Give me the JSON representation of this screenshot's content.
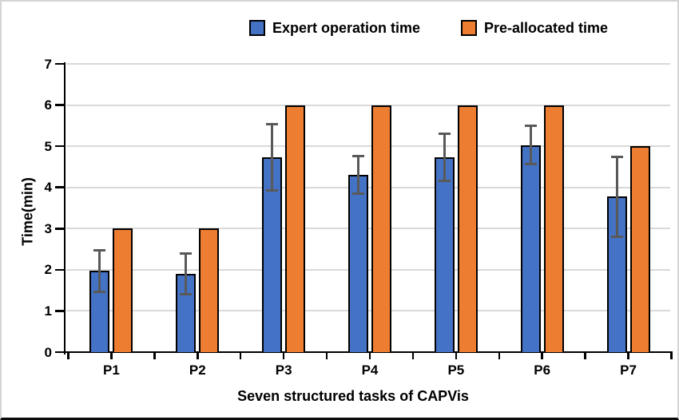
{
  "figure": {
    "background": "#ffffff",
    "border_color": "#d4d4d4",
    "bottom_edge_color": "#0a0a0a"
  },
  "legend": {
    "position": "top",
    "items": [
      {
        "label": "Expert operation time",
        "color": "#4472C4"
      },
      {
        "label": "Pre-allocated time",
        "color": "#ED7D31"
      }
    ]
  },
  "chart_data": {
    "type": "bar",
    "title": "",
    "xlabel": "Seven structured tasks of CAPVis",
    "ylabel": "Time(min)",
    "categories": [
      "P1",
      "P2",
      "P3",
      "P4",
      "P5",
      "P6",
      "P7"
    ],
    "series": [
      {
        "name": "Expert operation time",
        "color": "#4472C4",
        "values": [
          1.97,
          1.9,
          4.73,
          4.3,
          4.73,
          5.03,
          3.78
        ],
        "error": [
          0.5,
          0.5,
          0.8,
          0.46,
          0.57,
          0.46,
          0.97
        ]
      },
      {
        "name": "Pre-allocated time",
        "color": "#ED7D31",
        "values": [
          3,
          3,
          6,
          6,
          6,
          6,
          5
        ]
      }
    ],
    "ylim": [
      0,
      7
    ],
    "ytick_interval": 1,
    "grid": true,
    "gridline_color": "#D9D9D9",
    "axis_color": "#000000",
    "bar_outline_color": "#000000",
    "error_bar_color": "#595959",
    "legend_position": "top"
  }
}
